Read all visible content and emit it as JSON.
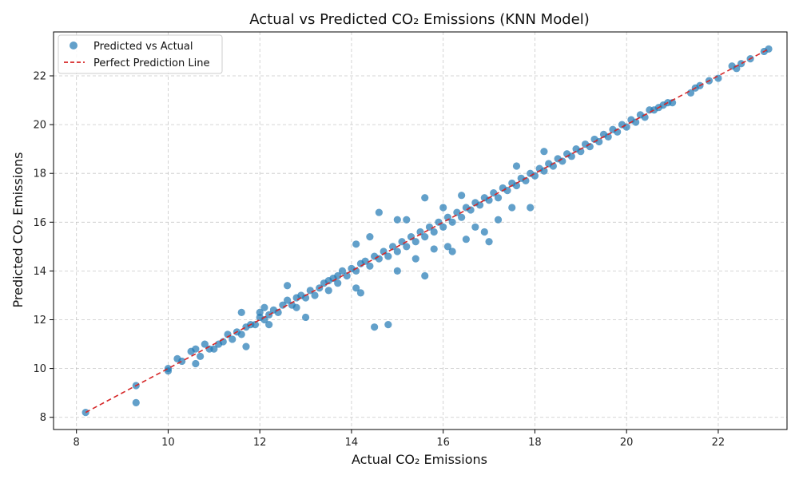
{
  "chart_data": {
    "type": "scatter",
    "title": "Actual vs Predicted CO₂ Emissions (KNN Model)",
    "xlabel": "Actual CO₂ Emissions",
    "ylabel": "Predicted CO₂ Emissions",
    "xlim": [
      7.5,
      23.5
    ],
    "ylim": [
      7.5,
      23.8
    ],
    "xticks": [
      8,
      10,
      12,
      14,
      16,
      18,
      20,
      22
    ],
    "yticks": [
      8,
      10,
      12,
      14,
      16,
      18,
      20,
      22
    ],
    "grid": true,
    "legend_position": "top-left",
    "series": [
      {
        "name": "Predicted vs Actual",
        "kind": "scatter",
        "color": "#1f77b4",
        "points": [
          [
            8.2,
            8.2
          ],
          [
            9.3,
            9.3
          ],
          [
            9.3,
            8.6
          ],
          [
            10.0,
            10.0
          ],
          [
            10.0,
            9.9
          ],
          [
            10.2,
            10.4
          ],
          [
            10.3,
            10.3
          ],
          [
            10.5,
            10.7
          ],
          [
            10.6,
            10.8
          ],
          [
            10.6,
            10.2
          ],
          [
            10.7,
            10.5
          ],
          [
            10.8,
            11.0
          ],
          [
            10.9,
            10.8
          ],
          [
            11.0,
            10.8
          ],
          [
            11.1,
            11.0
          ],
          [
            11.2,
            11.1
          ],
          [
            11.3,
            11.4
          ],
          [
            11.4,
            11.2
          ],
          [
            11.5,
            11.5
          ],
          [
            11.6,
            11.4
          ],
          [
            11.6,
            12.3
          ],
          [
            11.7,
            11.7
          ],
          [
            11.7,
            10.9
          ],
          [
            11.8,
            11.8
          ],
          [
            11.9,
            11.8
          ],
          [
            12.0,
            12.1
          ],
          [
            12.0,
            12.3
          ],
          [
            12.1,
            12.0
          ],
          [
            12.1,
            12.5
          ],
          [
            12.2,
            12.2
          ],
          [
            12.2,
            11.8
          ],
          [
            12.3,
            12.4
          ],
          [
            12.4,
            12.3
          ],
          [
            12.5,
            12.6
          ],
          [
            12.6,
            12.8
          ],
          [
            12.6,
            13.4
          ],
          [
            12.7,
            12.6
          ],
          [
            12.8,
            12.9
          ],
          [
            12.8,
            12.5
          ],
          [
            12.9,
            13.0
          ],
          [
            13.0,
            12.9
          ],
          [
            13.0,
            12.1
          ],
          [
            13.1,
            13.2
          ],
          [
            13.2,
            13.0
          ],
          [
            13.3,
            13.3
          ],
          [
            13.4,
            13.5
          ],
          [
            13.5,
            13.2
          ],
          [
            13.5,
            13.6
          ],
          [
            13.6,
            13.7
          ],
          [
            13.7,
            13.5
          ],
          [
            13.7,
            13.8
          ],
          [
            13.8,
            14.0
          ],
          [
            13.9,
            13.8
          ],
          [
            14.0,
            14.1
          ],
          [
            14.1,
            14.0
          ],
          [
            14.1,
            15.1
          ],
          [
            14.1,
            13.3
          ],
          [
            14.2,
            14.3
          ],
          [
            14.2,
            13.1
          ],
          [
            14.3,
            14.4
          ],
          [
            14.4,
            14.2
          ],
          [
            14.4,
            15.4
          ],
          [
            14.5,
            14.6
          ],
          [
            14.5,
            11.7
          ],
          [
            14.6,
            14.5
          ],
          [
            14.6,
            16.4
          ],
          [
            14.7,
            14.8
          ],
          [
            14.8,
            14.6
          ],
          [
            14.8,
            11.8
          ],
          [
            14.9,
            15.0
          ],
          [
            15.0,
            14.8
          ],
          [
            15.0,
            16.1
          ],
          [
            15.0,
            14.0
          ],
          [
            15.1,
            15.2
          ],
          [
            15.2,
            15.0
          ],
          [
            15.2,
            16.1
          ],
          [
            15.3,
            15.4
          ],
          [
            15.4,
            15.2
          ],
          [
            15.4,
            14.5
          ],
          [
            15.5,
            15.6
          ],
          [
            15.6,
            15.4
          ],
          [
            15.6,
            17.0
          ],
          [
            15.6,
            13.8
          ],
          [
            15.7,
            15.8
          ],
          [
            15.8,
            15.6
          ],
          [
            15.8,
            14.9
          ],
          [
            15.9,
            16.0
          ],
          [
            16.0,
            15.8
          ],
          [
            16.0,
            16.6
          ],
          [
            16.1,
            16.2
          ],
          [
            16.1,
            15.0
          ],
          [
            16.2,
            16.0
          ],
          [
            16.2,
            14.8
          ],
          [
            16.3,
            16.4
          ],
          [
            16.4,
            16.2
          ],
          [
            16.4,
            17.1
          ],
          [
            16.5,
            16.6
          ],
          [
            16.5,
            15.3
          ],
          [
            16.6,
            16.5
          ],
          [
            16.7,
            16.8
          ],
          [
            16.7,
            15.8
          ],
          [
            16.8,
            16.7
          ],
          [
            16.9,
            17.0
          ],
          [
            16.9,
            15.6
          ],
          [
            17.0,
            16.9
          ],
          [
            17.0,
            15.2
          ],
          [
            17.1,
            17.2
          ],
          [
            17.2,
            17.0
          ],
          [
            17.2,
            16.1
          ],
          [
            17.3,
            17.4
          ],
          [
            17.4,
            17.3
          ],
          [
            17.5,
            17.6
          ],
          [
            17.5,
            16.6
          ],
          [
            17.6,
            17.5
          ],
          [
            17.6,
            18.3
          ],
          [
            17.7,
            17.8
          ],
          [
            17.8,
            17.7
          ],
          [
            17.9,
            18.0
          ],
          [
            17.9,
            16.6
          ],
          [
            18.0,
            17.9
          ],
          [
            18.1,
            18.2
          ],
          [
            18.2,
            18.1
          ],
          [
            18.2,
            18.9
          ],
          [
            18.3,
            18.4
          ],
          [
            18.4,
            18.3
          ],
          [
            18.5,
            18.6
          ],
          [
            18.6,
            18.5
          ],
          [
            18.7,
            18.8
          ],
          [
            18.8,
            18.7
          ],
          [
            18.9,
            19.0
          ],
          [
            19.0,
            18.9
          ],
          [
            19.1,
            19.2
          ],
          [
            19.2,
            19.1
          ],
          [
            19.3,
            19.4
          ],
          [
            19.4,
            19.3
          ],
          [
            19.5,
            19.6
          ],
          [
            19.6,
            19.5
          ],
          [
            19.7,
            19.8
          ],
          [
            19.8,
            19.7
          ],
          [
            19.9,
            20.0
          ],
          [
            20.0,
            19.9
          ],
          [
            20.1,
            20.2
          ],
          [
            20.2,
            20.1
          ],
          [
            20.3,
            20.4
          ],
          [
            20.4,
            20.3
          ],
          [
            20.5,
            20.6
          ],
          [
            20.6,
            20.6
          ],
          [
            20.7,
            20.7
          ],
          [
            20.8,
            20.8
          ],
          [
            20.9,
            20.9
          ],
          [
            21.0,
            20.9
          ],
          [
            21.4,
            21.3
          ],
          [
            21.5,
            21.5
          ],
          [
            21.6,
            21.6
          ],
          [
            21.8,
            21.8
          ],
          [
            22.0,
            21.9
          ],
          [
            22.3,
            22.4
          ],
          [
            22.4,
            22.3
          ],
          [
            22.5,
            22.5
          ],
          [
            22.7,
            22.7
          ],
          [
            23.0,
            23.0
          ],
          [
            23.1,
            23.1
          ]
        ]
      },
      {
        "name": "Perfect Prediction Line",
        "kind": "line",
        "color": "#d62728",
        "dash": "dashed",
        "x": [
          8.2,
          23.1
        ],
        "y": [
          8.2,
          23.1
        ]
      }
    ]
  }
}
